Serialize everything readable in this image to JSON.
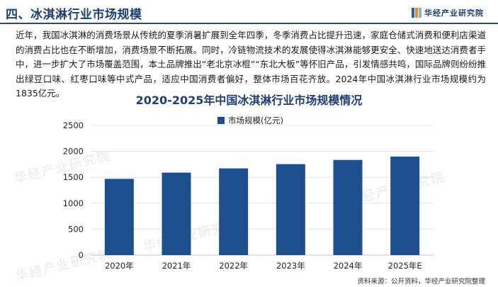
{
  "header": {
    "title": "四、冰淇淋行业市场规模",
    "brand": "华经产业研究院",
    "brand_colors": [
      "#2a5caa",
      "#e08a2c",
      "#7fb3e0"
    ]
  },
  "paragraph": "近年，我国冰淇淋的消费场景从传统的夏季消暑扩展到全年四季，冬季消费占比提升迅速，家庭仓储式消费和便利店渠道的消费占比也在不断增加，消费场景不断拓展。同时，冷链物流技术的发展使得冰淇淋能够更安全、快速地送达消费者手中，进一步扩大了市场覆盖范围，本土品牌推出“老北京冰棍”“东北大板”等怀旧产品，引发情感共鸣，国际品牌则纷纷推出绿豆口味、红枣口味等中式产品，适应中国消费者偏好，整体市场百花齐放。2024年中国冰淇淋行业市场规模约为1835亿元。",
  "watermark": "华经产业研究院",
  "source": "资料来源：公开资料，华经产业研究院整理",
  "chart_data": {
    "type": "bar",
    "title": "2020-2025年中国冰淇淋行业市场规模情况",
    "categories": [
      "2020年",
      "2021年",
      "2022年",
      "2023年",
      "2024年",
      "2025年E"
    ],
    "series": [
      {
        "name": "市场规模(亿元)",
        "values": [
          1470,
          1590,
          1672,
          1754,
          1835,
          1900
        ],
        "color": "#1d4f8f"
      }
    ],
    "ylim": [
      0,
      2500
    ],
    "yticks": [
      0,
      500,
      1000,
      1500,
      2000,
      2500
    ],
    "grid": true,
    "legend": "top-center"
  }
}
